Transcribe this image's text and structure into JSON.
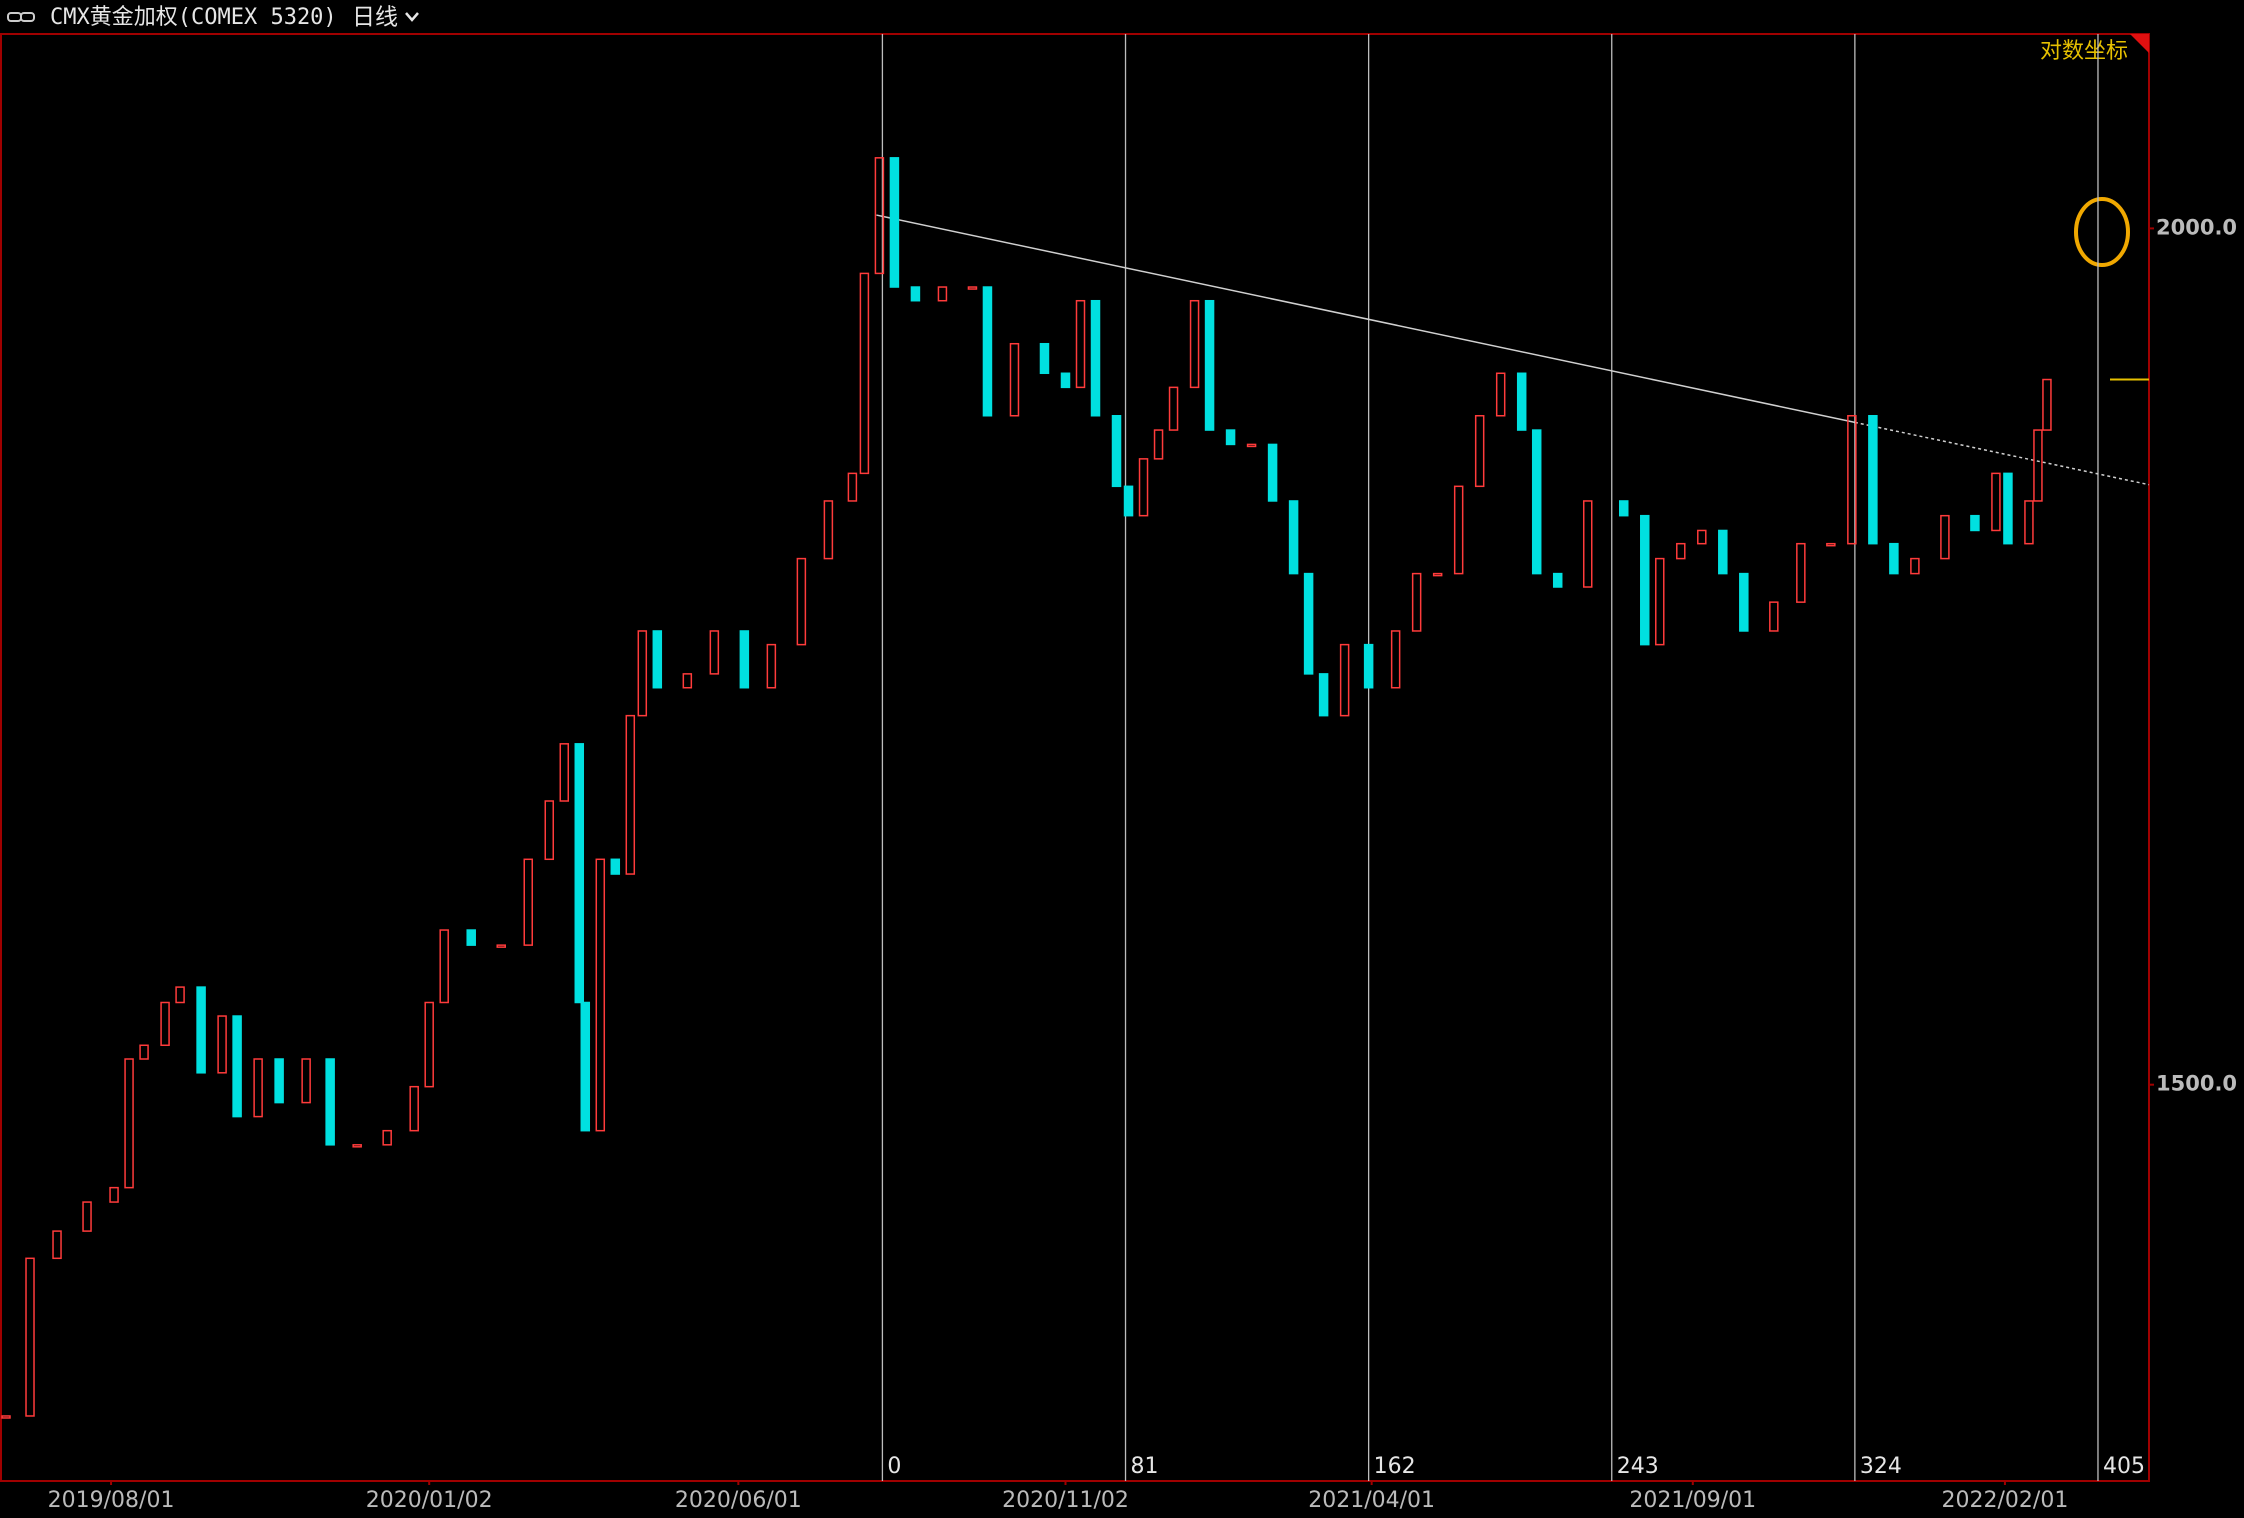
{
  "chart_data": {
    "type": "candlestick",
    "title": "CMX黄金加权(COMEX 5320)",
    "period": "日线",
    "scale_label": "对数坐标",
    "log_scale": true,
    "up_color": "#ff3b3b",
    "down_color": "#00e0e0",
    "x": [
      -292,
      -284,
      -275,
      -265,
      -256,
      -251,
      -246,
      -239,
      -234,
      -227,
      -220,
      -215,
      -208,
      -201,
      -192,
      -184,
      -175,
      -165,
      -156,
      -151,
      -146,
      -137,
      -127,
      -118,
      -111,
      -106,
      -101,
      -99,
      -94,
      -89,
      -84,
      -80,
      -75,
      -65,
      -56,
      -46,
      -37,
      -27,
      -18,
      -10,
      -6,
      -1,
      4,
      11,
      20,
      30,
      35,
      44,
      54,
      61,
      66,
      71,
      78,
      82,
      87,
      92,
      97,
      104,
      109,
      116,
      123,
      130,
      137,
      142,
      147,
      154,
      162,
      171,
      178,
      185,
      192,
      199,
      206,
      213,
      218,
      225,
      235,
      247,
      254,
      259,
      266,
      273,
      280,
      287,
      297,
      306,
      316,
      323,
      330,
      337,
      344,
      354,
      364,
      371,
      375,
      382,
      385,
      388
    ],
    "values": [
      1342,
      1415,
      1428,
      1442,
      1449,
      1513,
      1520,
      1542,
      1550,
      1506,
      1535,
      1484,
      1513,
      1491,
      1513,
      1470,
      1470,
      1477,
      1499,
      1542,
      1580,
      1572,
      1572,
      1618,
      1650,
      1682,
      1542,
      1477,
      1618,
      1610,
      1698,
      1747,
      1714,
      1722,
      1747,
      1714,
      1739,
      1790,
      1825,
      1842,
      1970,
      2048,
      1961,
      1952,
      1961,
      1961,
      1878,
      1924,
      1905,
      1896,
      1952,
      1878,
      1834,
      1816,
      1851,
      1869,
      1896,
      1952,
      1869,
      1860,
      1860,
      1825,
      1781,
      1722,
      1698,
      1739,
      1714,
      1747,
      1781,
      1781,
      1834,
      1878,
      1905,
      1869,
      1781,
      1773,
      1825,
      1816,
      1739,
      1790,
      1799,
      1807,
      1781,
      1747,
      1764,
      1799,
      1799,
      1878,
      1799,
      1781,
      1790,
      1816,
      1807,
      1842,
      1799,
      1825,
      1869,
      1901
    ],
    "xlim": [
      -294,
      422
    ],
    "xticks": [
      {
        "value": -257,
        "label": "2019/08/01"
      },
      {
        "value": -151,
        "label": "2020/01/02"
      },
      {
        "value": -48,
        "label": "2020/06/01"
      },
      {
        "value": 61,
        "label": "2020/11/02"
      },
      {
        "value": 163,
        "label": "2021/04/01"
      },
      {
        "value": 270,
        "label": "2021/09/01"
      },
      {
        "value": 374,
        "label": "2022/02/01"
      }
    ],
    "ylim": [
      1313,
      2135
    ],
    "yticks": [
      {
        "value": 2000,
        "label": "2000.0"
      },
      {
        "value": 1500,
        "label": "1500.0"
      }
    ],
    "time_lines": [
      0,
      81,
      162,
      243,
      324,
      405
    ],
    "trend_line": {
      "x": [
        -2,
        422
      ],
      "y": [
        2009,
        1835
      ]
    }
  }
}
